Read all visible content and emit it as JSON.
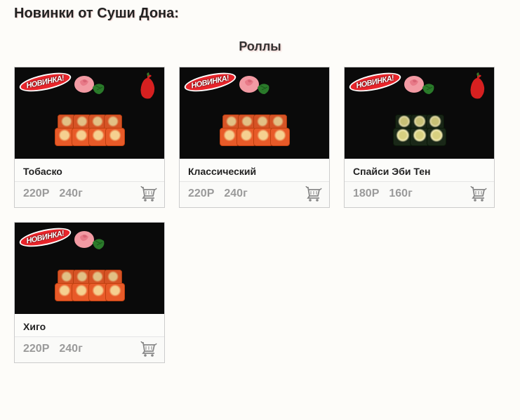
{
  "page_title": "Новинки от Суши Дона:",
  "category": "Роллы",
  "badge_new_label": "НОВИНКА!",
  "colors": {
    "card_border": "#cccccc",
    "image_bg": "#0a0a0a",
    "badge_bg": "#e8252b",
    "spicy": "#d62020",
    "price_text": "#9a9a9a",
    "roll_orange_outer": "#e85a28",
    "roll_orange_inner": "#f5d090",
    "roll_dark_outer": "#1a2818",
    "roll_dark_inner": "#d8d080",
    "garnish_pink": "#f29aa3",
    "garnish_green": "#2a7a2a"
  },
  "products": [
    {
      "name": "Тобаско",
      "price": "220Р",
      "weight": "240г",
      "has_new_badge": true,
      "has_spicy": true,
      "roll_style": "orange",
      "roll_count_front": 4,
      "roll_count_back": 4
    },
    {
      "name": "Классический",
      "price": "220Р",
      "weight": "240г",
      "has_new_badge": true,
      "has_spicy": false,
      "roll_style": "orange",
      "roll_count_front": 4,
      "roll_count_back": 4
    },
    {
      "name": "Спайси Эби Тен",
      "price": "180Р",
      "weight": "160г",
      "has_new_badge": true,
      "has_spicy": true,
      "roll_style": "dark",
      "roll_count_front": 3,
      "roll_count_back": 3
    },
    {
      "name": "Хиго",
      "price": "220Р",
      "weight": "240г",
      "has_new_badge": true,
      "has_spicy": false,
      "roll_style": "orange",
      "roll_count_front": 4,
      "roll_count_back": 4
    }
  ]
}
